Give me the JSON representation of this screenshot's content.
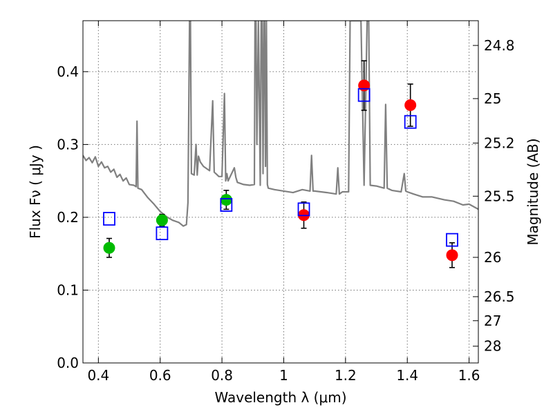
{
  "chart_data": {
    "type": "scatter",
    "xlabel": "Wavelength  λ (μm)",
    "ylabel": "Flux  Fν  ( μJy )",
    "ylabel_right": "Magnitude (AB)",
    "xlim": [
      0.35,
      1.63
    ],
    "ylim": [
      0.0,
      0.47
    ],
    "grid": true,
    "x_ticks": [
      0.4,
      0.6,
      0.8,
      1.0,
      1.2,
      1.4,
      1.6
    ],
    "x_tick_labels": [
      "0.4",
      "0.6",
      "0.8",
      "1",
      "1.2",
      "1.4",
      "1.6"
    ],
    "y_ticks": [
      0.0,
      0.1,
      0.2,
      0.3,
      0.4
    ],
    "y_tick_labels": [
      "0.0",
      "0.1",
      "0.2",
      "0.3",
      "0.4"
    ],
    "right_ticks": [
      {
        "label": "24.8",
        "flux": 0.436
      },
      {
        "label": "25",
        "flux": 0.363
      },
      {
        "label": "25.2",
        "flux": 0.302
      },
      {
        "label": "25.5",
        "flux": 0.229
      },
      {
        "label": "26",
        "flux": 0.145
      },
      {
        "label": "26.5",
        "flux": 0.091
      },
      {
        "label": "27",
        "flux": 0.058
      },
      {
        "label": "28",
        "flux": 0.023
      }
    ],
    "series": [
      {
        "marker": "circle",
        "color": "#00bb00",
        "points": [
          {
            "x": 0.435,
            "y": 0.158,
            "err": 0.013
          },
          {
            "x": 0.606,
            "y": 0.196,
            "err": 0.008
          },
          {
            "x": 0.814,
            "y": 0.224,
            "err": 0.013
          }
        ]
      },
      {
        "marker": "circle",
        "color": "#ff0000",
        "points": [
          {
            "x": 1.065,
            "y": 0.203,
            "err": 0.018
          },
          {
            "x": 1.26,
            "y": 0.381,
            "err": 0.034
          },
          {
            "x": 1.41,
            "y": 0.354,
            "err": 0.029
          },
          {
            "x": 1.545,
            "y": 0.148,
            "err": 0.017
          }
        ]
      },
      {
        "marker": "square-open",
        "color": "#0000ff",
        "points": [
          {
            "x": 0.435,
            "y": 0.198
          },
          {
            "x": 0.606,
            "y": 0.178
          },
          {
            "x": 0.814,
            "y": 0.217
          },
          {
            "x": 1.065,
            "y": 0.211
          },
          {
            "x": 1.26,
            "y": 0.368
          },
          {
            "x": 1.41,
            "y": 0.331
          },
          {
            "x": 1.545,
            "y": 0.169
          }
        ]
      }
    ],
    "spectrum": {
      "color": "#808080",
      "x": [
        0.35,
        0.36,
        0.37,
        0.38,
        0.39,
        0.4,
        0.41,
        0.42,
        0.43,
        0.44,
        0.45,
        0.46,
        0.47,
        0.48,
        0.49,
        0.5,
        0.515,
        0.522,
        0.525,
        0.528,
        0.54,
        0.56,
        0.58,
        0.6,
        0.62,
        0.64,
        0.66,
        0.675,
        0.685,
        0.69,
        0.695,
        0.698,
        0.701,
        0.71,
        0.716,
        0.72,
        0.724,
        0.73,
        0.74,
        0.76,
        0.77,
        0.775,
        0.78,
        0.79,
        0.8,
        0.808,
        0.812,
        0.816,
        0.82,
        0.84,
        0.845,
        0.85,
        0.87,
        0.89,
        0.905,
        0.907,
        0.91,
        0.913,
        0.918,
        0.924,
        0.927,
        0.93,
        0.933,
        0.936,
        0.938,
        0.941,
        0.944,
        0.947,
        0.95,
        0.97,
        1.0,
        1.03,
        1.06,
        1.085,
        1.09,
        1.095,
        1.1,
        1.14,
        1.17,
        1.175,
        1.18,
        1.19,
        1.21,
        1.215,
        1.22,
        1.25,
        1.26,
        1.27,
        1.275,
        1.28,
        1.3,
        1.325,
        1.33,
        1.335,
        1.35,
        1.38,
        1.39,
        1.395,
        1.4,
        1.42,
        1.45,
        1.48,
        1.52,
        1.55,
        1.58,
        1.6,
        1.63
      ],
      "y": [
        0.285,
        0.278,
        0.282,
        0.275,
        0.283,
        0.27,
        0.276,
        0.268,
        0.27,
        0.262,
        0.266,
        0.255,
        0.259,
        0.25,
        0.254,
        0.245,
        0.244,
        0.242,
        0.332,
        0.24,
        0.238,
        0.227,
        0.218,
        0.208,
        0.201,
        0.196,
        0.193,
        0.188,
        0.19,
        0.22,
        0.47,
        0.47,
        0.26,
        0.258,
        0.3,
        0.258,
        0.284,
        0.276,
        0.27,
        0.264,
        0.36,
        0.262,
        0.26,
        0.256,
        0.256,
        0.37,
        0.25,
        0.26,
        0.25,
        0.268,
        0.255,
        0.248,
        0.245,
        0.244,
        0.245,
        0.47,
        0.47,
        0.3,
        0.47,
        0.244,
        0.47,
        0.47,
        0.26,
        0.47,
        0.47,
        0.27,
        0.47,
        0.245,
        0.24,
        0.238,
        0.236,
        0.234,
        0.238,
        0.236,
        0.285,
        0.236,
        0.236,
        0.234,
        0.232,
        0.268,
        0.232,
        0.235,
        0.235,
        0.47,
        0.47,
        0.47,
        0.244,
        0.47,
        0.47,
        0.244,
        0.243,
        0.24,
        0.355,
        0.24,
        0.237,
        0.235,
        0.26,
        0.236,
        0.235,
        0.232,
        0.228,
        0.228,
        0.224,
        0.222,
        0.217,
        0.218,
        0.211
      ]
    }
  }
}
